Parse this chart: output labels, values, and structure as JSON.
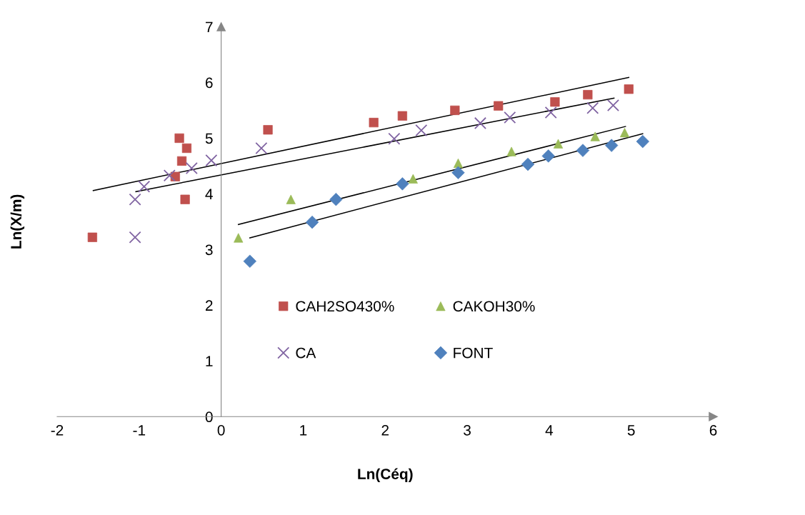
{
  "chart_data": {
    "type": "scatter",
    "xlabel": "Ln(Céq)",
    "ylabel": "Ln(X/m)",
    "xlim": [
      -2,
      6
    ],
    "ylim": [
      0,
      7
    ],
    "xticks": [
      -2,
      -1,
      0,
      1,
      2,
      3,
      4,
      5,
      6
    ],
    "yticks": [
      0,
      1,
      2,
      3,
      4,
      5,
      6,
      7
    ],
    "grid": false,
    "legend": "center",
    "series": [
      {
        "name": "CAH2SO430%",
        "color": "#c0504d",
        "marker": "square",
        "x": [
          -1.57,
          -0.51,
          -0.48,
          -0.56,
          -0.42,
          -0.44,
          0.57,
          1.86,
          2.21,
          2.85,
          3.38,
          4.07,
          4.47,
          4.97
        ],
        "values": [
          3.22,
          5.0,
          4.59,
          4.31,
          4.82,
          3.9,
          5.15,
          5.28,
          5.4,
          5.5,
          5.58,
          5.65,
          5.78,
          5.88
        ]
      },
      {
        "name": "CA",
        "color": "#8064a2",
        "marker": "cross",
        "x": [
          -1.05,
          -1.05,
          -0.94,
          -0.63,
          -0.36,
          -0.12,
          0.49,
          2.11,
          2.44,
          3.16,
          3.52,
          4.02,
          4.53,
          4.78
        ],
        "values": [
          3.22,
          3.9,
          4.13,
          4.33,
          4.46,
          4.6,
          4.82,
          4.99,
          5.14,
          5.27,
          5.37,
          5.46,
          5.54,
          5.59
        ]
      },
      {
        "name": "CAKOH30%",
        "color": "#9bbb59",
        "marker": "triangle",
        "x": [
          0.21,
          0.85,
          2.34,
          2.89,
          3.54,
          4.11,
          4.56,
          4.92
        ],
        "values": [
          3.21,
          3.9,
          4.27,
          4.55,
          4.76,
          4.9,
          5.03,
          5.1
        ]
      },
      {
        "name": "FONT",
        "color": "#4f81bd",
        "marker": "diamond",
        "x": [
          0.35,
          1.11,
          1.4,
          2.21,
          2.89,
          3.74,
          3.99,
          4.41,
          4.76,
          5.14
        ],
        "values": [
          2.79,
          3.49,
          3.9,
          4.18,
          4.38,
          4.53,
          4.68,
          4.78,
          4.87,
          4.94
        ]
      },
      {
        "type": "line",
        "color": "#000000",
        "x": [
          -1.56,
          4.97
        ],
        "values": [
          4.06,
          6.09
        ]
      },
      {
        "type": "line",
        "color": "#000000",
        "x": [
          -1.04,
          4.79
        ],
        "values": [
          4.04,
          5.72
        ]
      },
      {
        "type": "line",
        "color": "#000000",
        "x": [
          0.21,
          4.93
        ],
        "values": [
          3.45,
          5.21
        ]
      },
      {
        "type": "line",
        "color": "#000000",
        "x": [
          0.35,
          5.14
        ],
        "values": [
          3.21,
          5.08
        ]
      }
    ]
  }
}
